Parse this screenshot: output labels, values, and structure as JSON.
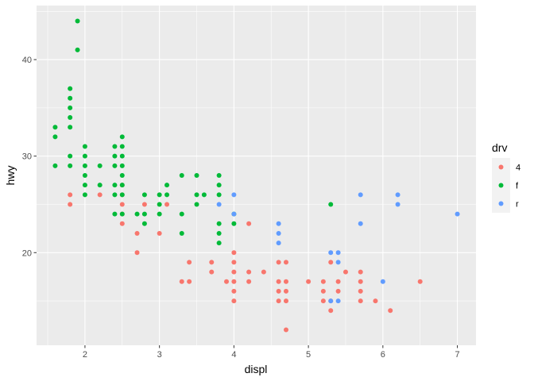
{
  "chart_data": {
    "type": "scatter",
    "xlabel": "displ",
    "ylabel": "hwy",
    "xlim": [
      1.35,
      7.25
    ],
    "ylim": [
      10.4,
      45.6
    ],
    "x_ticks": [
      2,
      3,
      4,
      5,
      6,
      7
    ],
    "y_ticks": [
      20,
      30,
      40
    ],
    "grid": true,
    "legend": {
      "title": "drv",
      "placement": "right",
      "entries": [
        {
          "label": "4",
          "color": "#F8766D"
        },
        {
          "label": "f",
          "color": "#00BA38"
        },
        {
          "label": "r",
          "color": "#619CFF"
        }
      ]
    },
    "series": [
      {
        "name": "4",
        "color": "#F8766D",
        "points": [
          [
            1.8,
            26
          ],
          [
            1.8,
            25
          ],
          [
            2.2,
            26
          ],
          [
            2.5,
            27
          ],
          [
            2.5,
            26
          ],
          [
            2.5,
            25
          ],
          [
            2.5,
            24
          ],
          [
            2.5,
            23
          ],
          [
            2.8,
            25
          ],
          [
            2.7,
            22
          ],
          [
            2.7,
            20
          ],
          [
            3.0,
            22
          ],
          [
            3.1,
            25
          ],
          [
            3.4,
            19
          ],
          [
            3.4,
            17
          ],
          [
            3.3,
            17
          ],
          [
            3.7,
            19
          ],
          [
            3.7,
            18
          ],
          [
            3.9,
            17
          ],
          [
            4.0,
            20
          ],
          [
            4.0,
            19
          ],
          [
            4.0,
            18
          ],
          [
            4.0,
            17
          ],
          [
            4.0,
            16
          ],
          [
            4.0,
            15
          ],
          [
            4.2,
            23
          ],
          [
            4.2,
            18
          ],
          [
            4.2,
            17
          ],
          [
            4.4,
            18
          ],
          [
            4.6,
            19
          ],
          [
            4.6,
            17
          ],
          [
            4.6,
            16
          ],
          [
            4.6,
            15
          ],
          [
            4.7,
            19
          ],
          [
            4.7,
            17
          ],
          [
            4.7,
            16
          ],
          [
            4.7,
            15
          ],
          [
            4.7,
            12
          ],
          [
            5.0,
            17
          ],
          [
            5.2,
            17
          ],
          [
            5.2,
            16
          ],
          [
            5.2,
            15
          ],
          [
            5.3,
            19
          ],
          [
            5.3,
            15
          ],
          [
            5.3,
            14
          ],
          [
            5.4,
            17
          ],
          [
            5.4,
            16
          ],
          [
            5.5,
            18
          ],
          [
            5.7,
            18
          ],
          [
            5.7,
            17
          ],
          [
            5.7,
            16
          ],
          [
            5.7,
            15
          ],
          [
            5.9,
            15
          ],
          [
            6.1,
            14
          ],
          [
            6.5,
            17
          ]
        ]
      },
      {
        "name": "f",
        "color": "#00BA38",
        "points": [
          [
            1.6,
            33
          ],
          [
            1.6,
            32
          ],
          [
            1.6,
            29
          ],
          [
            1.8,
            37
          ],
          [
            1.8,
            36
          ],
          [
            1.8,
            35
          ],
          [
            1.8,
            34
          ],
          [
            1.8,
            33
          ],
          [
            1.8,
            30
          ],
          [
            1.8,
            29
          ],
          [
            1.9,
            44
          ],
          [
            1.9,
            41
          ],
          [
            2.0,
            31
          ],
          [
            2.0,
            30
          ],
          [
            2.0,
            29
          ],
          [
            2.0,
            28
          ],
          [
            2.0,
            27
          ],
          [
            2.0,
            26
          ],
          [
            2.2,
            29
          ],
          [
            2.2,
            27
          ],
          [
            2.4,
            31
          ],
          [
            2.4,
            30
          ],
          [
            2.4,
            29
          ],
          [
            2.4,
            27
          ],
          [
            2.4,
            26
          ],
          [
            2.4,
            24
          ],
          [
            2.5,
            32
          ],
          [
            2.5,
            31
          ],
          [
            2.5,
            30
          ],
          [
            2.5,
            29
          ],
          [
            2.5,
            28
          ],
          [
            2.5,
            27
          ],
          [
            2.5,
            26
          ],
          [
            2.5,
            24
          ],
          [
            2.7,
            24
          ],
          [
            2.8,
            26
          ],
          [
            2.8,
            24
          ],
          [
            2.8,
            23
          ],
          [
            3.0,
            26
          ],
          [
            3.0,
            25
          ],
          [
            3.0,
            24
          ],
          [
            3.1,
            27
          ],
          [
            3.1,
            26
          ],
          [
            3.3,
            28
          ],
          [
            3.3,
            24
          ],
          [
            3.3,
            22
          ],
          [
            3.5,
            28
          ],
          [
            3.5,
            26
          ],
          [
            3.5,
            25
          ],
          [
            3.6,
            26
          ],
          [
            3.8,
            28
          ],
          [
            3.8,
            27
          ],
          [
            3.8,
            26
          ],
          [
            3.8,
            23
          ],
          [
            3.8,
            22
          ],
          [
            3.8,
            21
          ],
          [
            4.0,
            24
          ],
          [
            4.0,
            23
          ],
          [
            5.3,
            25
          ]
        ]
      },
      {
        "name": "r",
        "color": "#619CFF",
        "points": [
          [
            3.8,
            25
          ],
          [
            4.0,
            26
          ],
          [
            4.0,
            24
          ],
          [
            4.6,
            23
          ],
          [
            4.6,
            22
          ],
          [
            4.6,
            21
          ],
          [
            5.3,
            20
          ],
          [
            5.3,
            15
          ],
          [
            5.4,
            20
          ],
          [
            5.4,
            19
          ],
          [
            5.4,
            15
          ],
          [
            5.7,
            26
          ],
          [
            5.7,
            23
          ],
          [
            6.0,
            17
          ],
          [
            6.2,
            26
          ],
          [
            6.2,
            25
          ],
          [
            7.0,
            24
          ]
        ]
      }
    ]
  }
}
